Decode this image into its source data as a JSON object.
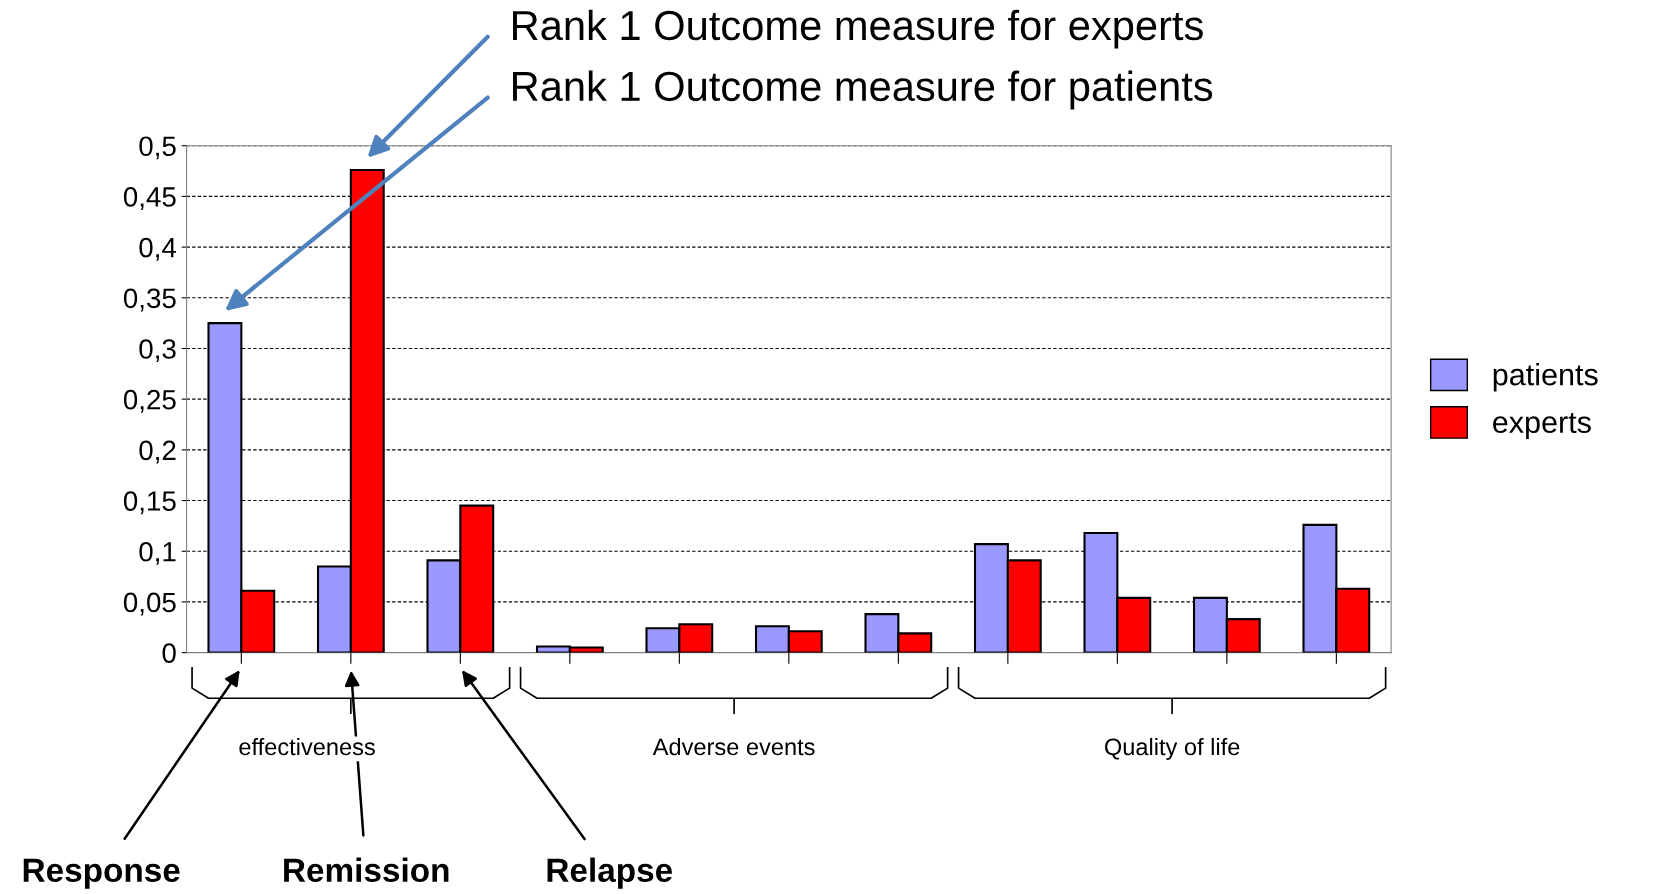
{
  "chart_data": {
    "type": "bar",
    "categories": [
      null,
      null,
      null,
      null,
      null,
      null,
      null,
      null,
      null,
      null,
      null
    ],
    "series": [
      {
        "name": "patients",
        "color": "#9999ff",
        "values": [
          0.325,
          0.085,
          0.091,
          0.006,
          0.024,
          0.026,
          0.038,
          0.107,
          0.118,
          0.054,
          0.126
        ]
      },
      {
        "name": "experts",
        "color": "#ff0000",
        "values": [
          0.061,
          0.476,
          0.145,
          0.005,
          0.028,
          0.021,
          0.019,
          0.091,
          0.054,
          0.033,
          0.063
        ]
      }
    ],
    "ylim": [
      0,
      0.5
    ],
    "yticks": [
      0,
      {
        "value": 0.05,
        "label": "0,05"
      },
      {
        "value": 0.1,
        "label": "0,1"
      },
      {
        "value": 0.15,
        "label": "0,15"
      },
      {
        "value": 0.2,
        "label": "0,2"
      },
      {
        "value": 0.25,
        "label": "0,25"
      },
      {
        "value": 0.3,
        "label": "0,3"
      },
      {
        "value": 0.35,
        "label": "0,35"
      },
      {
        "value": 0.4,
        "label": "0,4"
      },
      {
        "value": 0.45,
        "label": "0,45"
      },
      {
        "value": 0.5,
        "label": "0,5"
      }
    ],
    "grid": "y",
    "legend": "right",
    "annotations": [
      "Rank 1 Outcome measure for experts",
      "Rank 1 Outcome measure for patients",
      "effectiveness",
      "Adverse events",
      "Quality of life",
      "Response",
      "Remission",
      "Relapse"
    ]
  }
}
